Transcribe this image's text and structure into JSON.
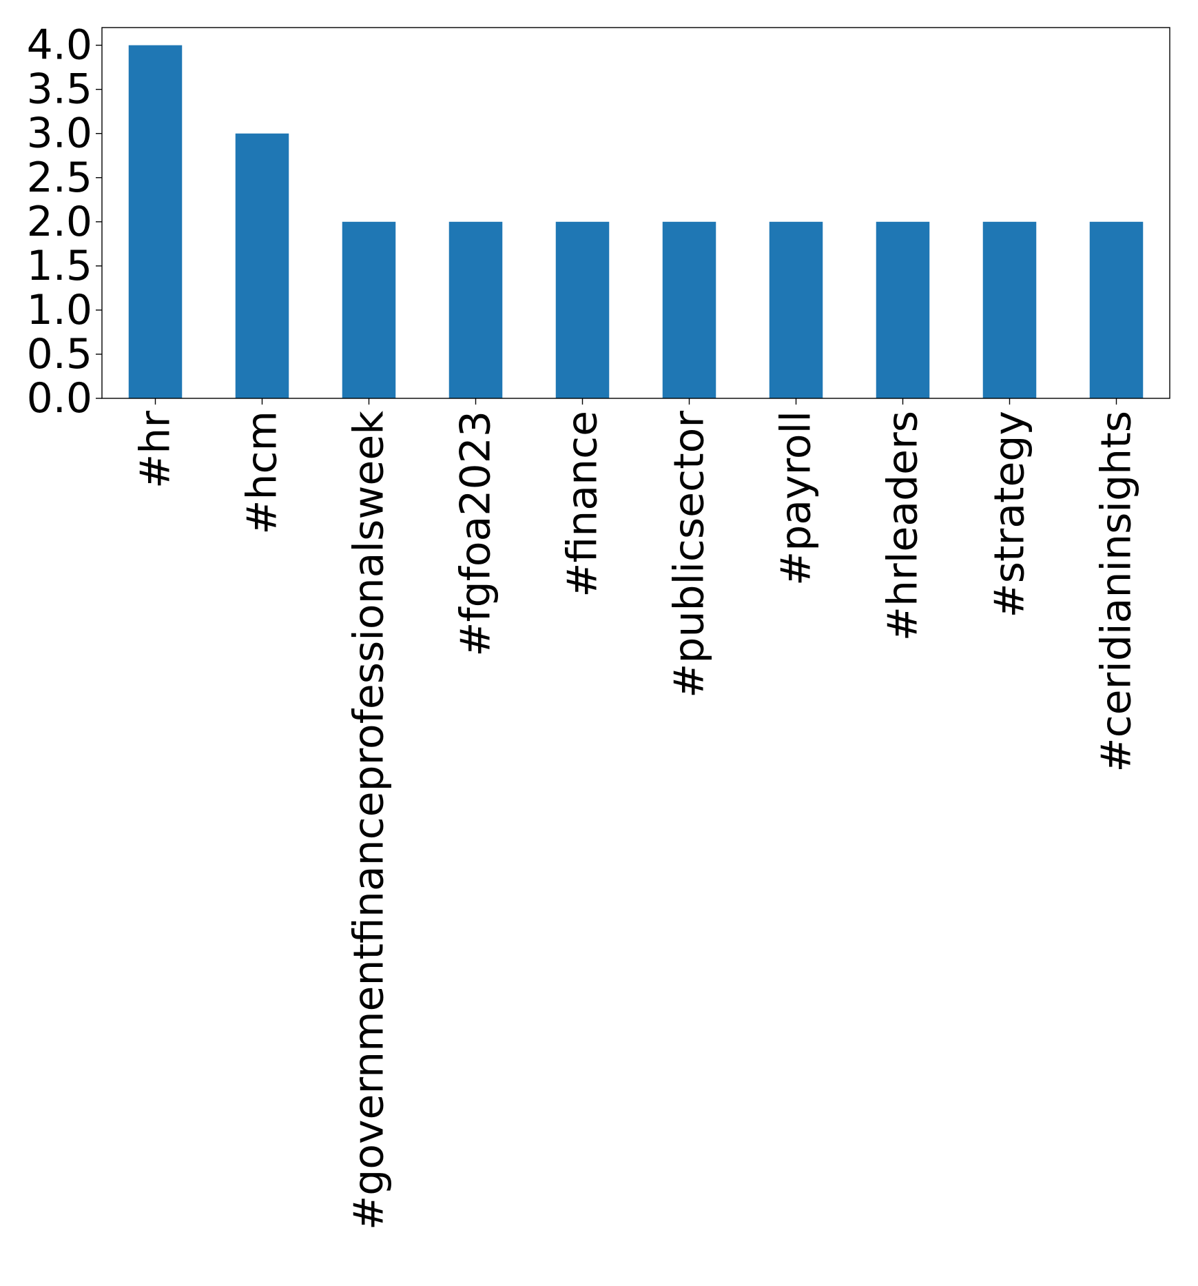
{
  "chart_data": {
    "type": "bar",
    "title": "",
    "xlabel": "",
    "ylabel": "",
    "categories": [
      "#hr",
      "#hcm",
      "#governmentfinanceprofessionalsweek",
      "#fgfoa2023",
      "#finance",
      "#publicsector",
      "#payroll",
      "#hrleaders",
      "#strategy",
      "#ceridianinsights"
    ],
    "values": [
      4,
      3,
      2,
      2,
      2,
      2,
      2,
      2,
      2,
      2
    ],
    "ylim": [
      0,
      4.2
    ],
    "yticks": [
      "0.0",
      "0.5",
      "1.0",
      "1.5",
      "2.0",
      "2.5",
      "3.0",
      "3.5",
      "4.0"
    ],
    "grid": false,
    "legend": "none",
    "bar_color": "#1f77b4"
  }
}
